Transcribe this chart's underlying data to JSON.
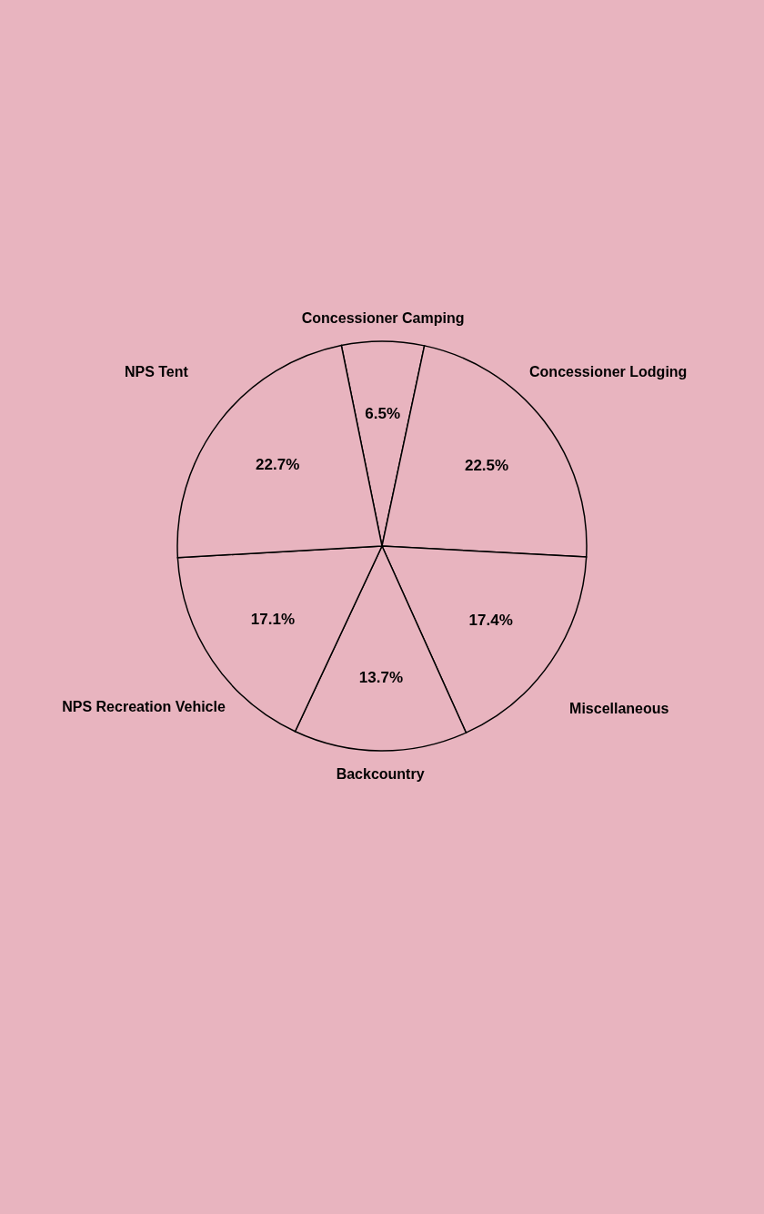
{
  "chart_data": {
    "type": "pie",
    "categories": [
      "Concessioner Camping",
      "Concessioner Lodging",
      "Miscellaneous",
      "Backcountry",
      "NPS Recreation Vehicle",
      "NPS Tent"
    ],
    "values": [
      6.5,
      22.5,
      17.4,
      13.7,
      17.1,
      22.7
    ],
    "colors": [
      "#e8b4bf",
      "#e8b4bf",
      "#e8b4bf",
      "#e8b4bf",
      "#e8b4bf",
      "#e8b4bf"
    ],
    "value_labels": [
      "6.5%",
      "22.5%",
      "17.4%",
      "13.7%",
      "17.1%",
      "22.7%"
    ],
    "legend": false
  }
}
